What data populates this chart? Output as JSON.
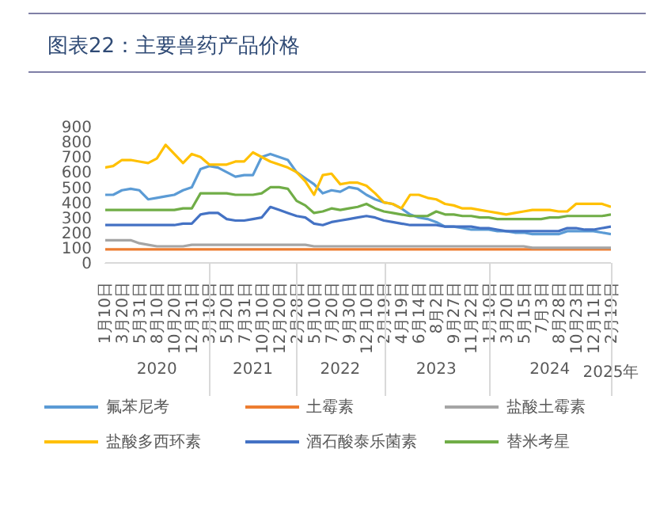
{
  "chart_data": {
    "type": "line",
    "title": "图表22：主要兽药产品价格",
    "categories": [
      "1月10日",
      null,
      "3月20日",
      null,
      "5月31日",
      null,
      "8月10日",
      null,
      "10月20日",
      null,
      "12月31日",
      null,
      "3月10日",
      null,
      "5月20日",
      null,
      "7月31日",
      null,
      "10月10日",
      null,
      "12月20日",
      null,
      "2月28日",
      null,
      "5月10日",
      null,
      "7月20日",
      null,
      "9月30日",
      null,
      "12月10日",
      null,
      "2月19日",
      null,
      "4月19日",
      null,
      "6月14日",
      null,
      "8月2日",
      null,
      "9月27日",
      null,
      "11月22日",
      null,
      "1月10日",
      null,
      "3月20日",
      null,
      "5月15日",
      null,
      "7月3日",
      null,
      "8月28日",
      null,
      "10月23日",
      null,
      "12月11日",
      null,
      "2月19日"
    ],
    "series": [
      {
        "name": "氟苯尼考",
        "color": "#5b9bd5",
        "values": [
          450,
          450,
          480,
          490,
          480,
          420,
          430,
          440,
          450,
          480,
          500,
          620,
          640,
          630,
          600,
          570,
          580,
          580,
          700,
          720,
          700,
          680,
          600,
          560,
          520,
          460,
          480,
          470,
          500,
          490,
          450,
          420,
          400,
          390,
          360,
          320,
          300,
          290,
          270,
          240,
          240,
          230,
          220,
          220,
          220,
          210,
          210,
          200,
          200,
          190,
          190,
          190,
          190,
          210,
          210,
          210,
          210,
          200,
          190
        ]
      },
      {
        "name": "土霉素",
        "color": "#ed7d31",
        "values": [
          90,
          90,
          90,
          90,
          90,
          90,
          90,
          90,
          90,
          90,
          90,
          90,
          90,
          90,
          90,
          90,
          90,
          90,
          90,
          90,
          90,
          90,
          90,
          90,
          90,
          90,
          90,
          90,
          90,
          90,
          90,
          90,
          90,
          90,
          90,
          90,
          90,
          90,
          90,
          90,
          90,
          90,
          90,
          90,
          90,
          90,
          90,
          90,
          90,
          90,
          90,
          90,
          90,
          90,
          90,
          90,
          90,
          90,
          90
        ]
      },
      {
        "name": "盐酸土霉素",
        "color": "#a5a5a5",
        "values": [
          150,
          150,
          150,
          150,
          130,
          120,
          110,
          110,
          110,
          110,
          120,
          120,
          120,
          120,
          120,
          120,
          120,
          120,
          120,
          120,
          120,
          120,
          120,
          120,
          110,
          110,
          110,
          110,
          110,
          110,
          110,
          110,
          110,
          110,
          110,
          110,
          110,
          110,
          110,
          110,
          110,
          110,
          110,
          110,
          110,
          110,
          110,
          110,
          110,
          100,
          100,
          100,
          100,
          100,
          100,
          100,
          100,
          100,
          100
        ]
      },
      {
        "name": "盐酸多西环素",
        "color": "#ffc000",
        "values": [
          630,
          640,
          680,
          680,
          670,
          660,
          690,
          780,
          720,
          660,
          720,
          700,
          650,
          650,
          650,
          670,
          670,
          730,
          700,
          670,
          650,
          630,
          600,
          540,
          450,
          580,
          590,
          520,
          530,
          530,
          510,
          460,
          400,
          390,
          360,
          450,
          450,
          430,
          420,
          390,
          380,
          360,
          360,
          350,
          340,
          330,
          320,
          330,
          340,
          350,
          350,
          350,
          340,
          340,
          390,
          390,
          390,
          390,
          370
        ]
      },
      {
        "name": "酒石酸泰乐菌素",
        "color": "#4472c4",
        "values": [
          250,
          250,
          250,
          250,
          250,
          250,
          250,
          250,
          250,
          260,
          260,
          320,
          330,
          330,
          290,
          280,
          280,
          290,
          300,
          370,
          350,
          330,
          310,
          300,
          260,
          250,
          270,
          280,
          290,
          300,
          310,
          300,
          280,
          270,
          260,
          250,
          250,
          250,
          250,
          240,
          240,
          240,
          240,
          230,
          230,
          220,
          210,
          210,
          210,
          210,
          210,
          210,
          210,
          230,
          230,
          220,
          220,
          230,
          240
        ]
      },
      {
        "name": "替米考星",
        "color": "#70ad47",
        "values": [
          350,
          350,
          350,
          350,
          350,
          350,
          350,
          350,
          350,
          360,
          360,
          460,
          460,
          460,
          460,
          450,
          450,
          450,
          460,
          500,
          500,
          490,
          410,
          380,
          330,
          340,
          360,
          350,
          360,
          370,
          390,
          360,
          340,
          330,
          320,
          310,
          310,
          310,
          340,
          320,
          320,
          310,
          310,
          300,
          300,
          290,
          290,
          290,
          290,
          290,
          290,
          300,
          300,
          310,
          310,
          310,
          310,
          310,
          320
        ]
      }
    ],
    "ylim": [
      0,
      900
    ],
    "yticks": [
      0,
      100,
      200,
      300,
      400,
      500,
      600,
      700,
      800,
      900
    ],
    "annotations": [
      "2020",
      "2021",
      "2022",
      "2023",
      "2024",
      "2025年"
    ],
    "legend": "bottom"
  }
}
